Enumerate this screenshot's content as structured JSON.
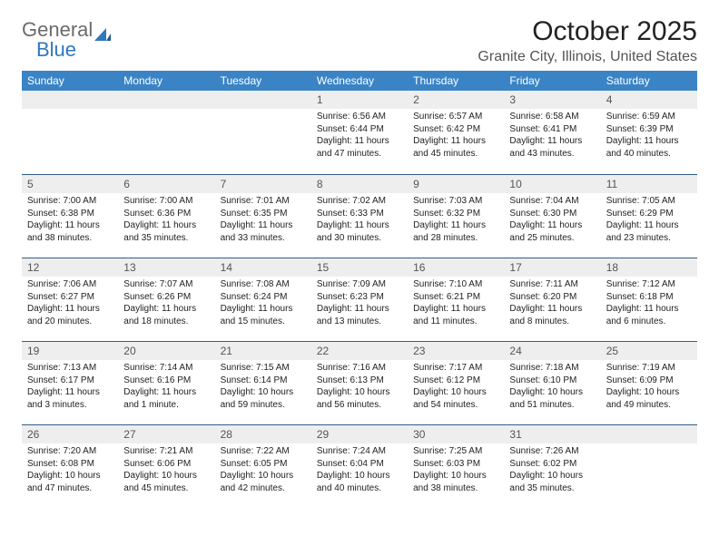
{
  "brand": {
    "word1": "General",
    "word2": "Blue"
  },
  "title": "October 2025",
  "location": "Granite City, Illinois, United States",
  "colors": {
    "header_bg": "#3a84c6",
    "header_text": "#ffffff",
    "band_bg": "#eeeeee",
    "band_text": "#555555",
    "rule": "#2f5e8a",
    "body_text": "#222222",
    "logo_gray": "#6b6b6b",
    "logo_blue": "#2f78bd",
    "page_bg": "#ffffff"
  },
  "typography": {
    "title_fontsize": 30,
    "location_fontsize": 16,
    "header_fontsize": 12,
    "daynum_fontsize": 12,
    "body_fontsize": 10
  },
  "day_labels": [
    "Sunday",
    "Monday",
    "Tuesday",
    "Wednesday",
    "Thursday",
    "Friday",
    "Saturday"
  ],
  "weeks": [
    [
      null,
      null,
      null,
      {
        "n": "1",
        "sunrise": "Sunrise: 6:56 AM",
        "sunset": "Sunset: 6:44 PM",
        "daylight": "Daylight: 11 hours and 47 minutes."
      },
      {
        "n": "2",
        "sunrise": "Sunrise: 6:57 AM",
        "sunset": "Sunset: 6:42 PM",
        "daylight": "Daylight: 11 hours and 45 minutes."
      },
      {
        "n": "3",
        "sunrise": "Sunrise: 6:58 AM",
        "sunset": "Sunset: 6:41 PM",
        "daylight": "Daylight: 11 hours and 43 minutes."
      },
      {
        "n": "4",
        "sunrise": "Sunrise: 6:59 AM",
        "sunset": "Sunset: 6:39 PM",
        "daylight": "Daylight: 11 hours and 40 minutes."
      }
    ],
    [
      {
        "n": "5",
        "sunrise": "Sunrise: 7:00 AM",
        "sunset": "Sunset: 6:38 PM",
        "daylight": "Daylight: 11 hours and 38 minutes."
      },
      {
        "n": "6",
        "sunrise": "Sunrise: 7:00 AM",
        "sunset": "Sunset: 6:36 PM",
        "daylight": "Daylight: 11 hours and 35 minutes."
      },
      {
        "n": "7",
        "sunrise": "Sunrise: 7:01 AM",
        "sunset": "Sunset: 6:35 PM",
        "daylight": "Daylight: 11 hours and 33 minutes."
      },
      {
        "n": "8",
        "sunrise": "Sunrise: 7:02 AM",
        "sunset": "Sunset: 6:33 PM",
        "daylight": "Daylight: 11 hours and 30 minutes."
      },
      {
        "n": "9",
        "sunrise": "Sunrise: 7:03 AM",
        "sunset": "Sunset: 6:32 PM",
        "daylight": "Daylight: 11 hours and 28 minutes."
      },
      {
        "n": "10",
        "sunrise": "Sunrise: 7:04 AM",
        "sunset": "Sunset: 6:30 PM",
        "daylight": "Daylight: 11 hours and 25 minutes."
      },
      {
        "n": "11",
        "sunrise": "Sunrise: 7:05 AM",
        "sunset": "Sunset: 6:29 PM",
        "daylight": "Daylight: 11 hours and 23 minutes."
      }
    ],
    [
      {
        "n": "12",
        "sunrise": "Sunrise: 7:06 AM",
        "sunset": "Sunset: 6:27 PM",
        "daylight": "Daylight: 11 hours and 20 minutes."
      },
      {
        "n": "13",
        "sunrise": "Sunrise: 7:07 AM",
        "sunset": "Sunset: 6:26 PM",
        "daylight": "Daylight: 11 hours and 18 minutes."
      },
      {
        "n": "14",
        "sunrise": "Sunrise: 7:08 AM",
        "sunset": "Sunset: 6:24 PM",
        "daylight": "Daylight: 11 hours and 15 minutes."
      },
      {
        "n": "15",
        "sunrise": "Sunrise: 7:09 AM",
        "sunset": "Sunset: 6:23 PM",
        "daylight": "Daylight: 11 hours and 13 minutes."
      },
      {
        "n": "16",
        "sunrise": "Sunrise: 7:10 AM",
        "sunset": "Sunset: 6:21 PM",
        "daylight": "Daylight: 11 hours and 11 minutes."
      },
      {
        "n": "17",
        "sunrise": "Sunrise: 7:11 AM",
        "sunset": "Sunset: 6:20 PM",
        "daylight": "Daylight: 11 hours and 8 minutes."
      },
      {
        "n": "18",
        "sunrise": "Sunrise: 7:12 AM",
        "sunset": "Sunset: 6:18 PM",
        "daylight": "Daylight: 11 hours and 6 minutes."
      }
    ],
    [
      {
        "n": "19",
        "sunrise": "Sunrise: 7:13 AM",
        "sunset": "Sunset: 6:17 PM",
        "daylight": "Daylight: 11 hours and 3 minutes."
      },
      {
        "n": "20",
        "sunrise": "Sunrise: 7:14 AM",
        "sunset": "Sunset: 6:16 PM",
        "daylight": "Daylight: 11 hours and 1 minute."
      },
      {
        "n": "21",
        "sunrise": "Sunrise: 7:15 AM",
        "sunset": "Sunset: 6:14 PM",
        "daylight": "Daylight: 10 hours and 59 minutes."
      },
      {
        "n": "22",
        "sunrise": "Sunrise: 7:16 AM",
        "sunset": "Sunset: 6:13 PM",
        "daylight": "Daylight: 10 hours and 56 minutes."
      },
      {
        "n": "23",
        "sunrise": "Sunrise: 7:17 AM",
        "sunset": "Sunset: 6:12 PM",
        "daylight": "Daylight: 10 hours and 54 minutes."
      },
      {
        "n": "24",
        "sunrise": "Sunrise: 7:18 AM",
        "sunset": "Sunset: 6:10 PM",
        "daylight": "Daylight: 10 hours and 51 minutes."
      },
      {
        "n": "25",
        "sunrise": "Sunrise: 7:19 AM",
        "sunset": "Sunset: 6:09 PM",
        "daylight": "Daylight: 10 hours and 49 minutes."
      }
    ],
    [
      {
        "n": "26",
        "sunrise": "Sunrise: 7:20 AM",
        "sunset": "Sunset: 6:08 PM",
        "daylight": "Daylight: 10 hours and 47 minutes."
      },
      {
        "n": "27",
        "sunrise": "Sunrise: 7:21 AM",
        "sunset": "Sunset: 6:06 PM",
        "daylight": "Daylight: 10 hours and 45 minutes."
      },
      {
        "n": "28",
        "sunrise": "Sunrise: 7:22 AM",
        "sunset": "Sunset: 6:05 PM",
        "daylight": "Daylight: 10 hours and 42 minutes."
      },
      {
        "n": "29",
        "sunrise": "Sunrise: 7:24 AM",
        "sunset": "Sunset: 6:04 PM",
        "daylight": "Daylight: 10 hours and 40 minutes."
      },
      {
        "n": "30",
        "sunrise": "Sunrise: 7:25 AM",
        "sunset": "Sunset: 6:03 PM",
        "daylight": "Daylight: 10 hours and 38 minutes."
      },
      {
        "n": "31",
        "sunrise": "Sunrise: 7:26 AM",
        "sunset": "Sunset: 6:02 PM",
        "daylight": "Daylight: 10 hours and 35 minutes."
      },
      null
    ]
  ]
}
